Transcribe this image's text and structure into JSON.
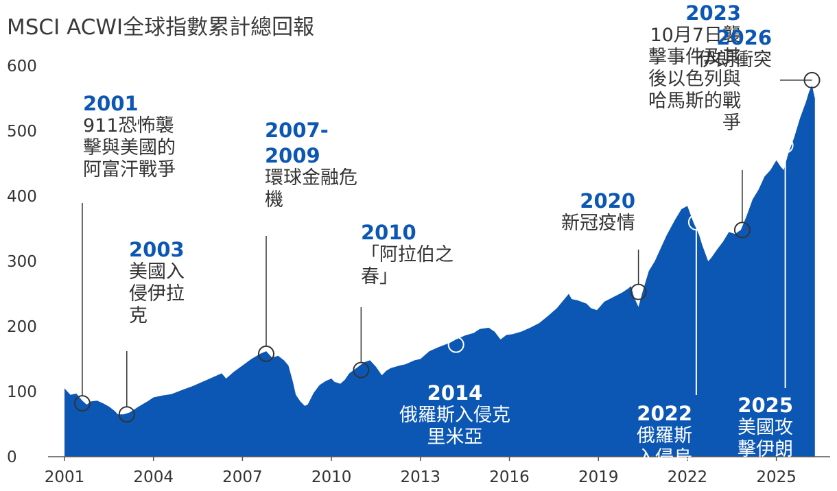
{
  "chart_data": {
    "type": "area",
    "title": "MSCI ACWI全球指數累計總回報",
    "xlabel": "",
    "ylabel": "",
    "xlim": [
      2001,
      2026.35
    ],
    "ylim": [
      0,
      600
    ],
    "y_ticks": [
      "0",
      "100",
      "200",
      "300",
      "400",
      "500",
      "600"
    ],
    "y_tick_values": [
      0,
      100,
      200,
      300,
      400,
      500,
      600
    ],
    "x_ticks": [
      "2001",
      "2004",
      "2007",
      "2010",
      "2013",
      "2016",
      "2019",
      "2022",
      "2025"
    ],
    "x_tick_values": [
      2001,
      2004,
      2007,
      2010,
      2013,
      2016,
      2019,
      2022,
      2025
    ],
    "fill_color": "#0c57b3",
    "grid": false,
    "series": [
      {
        "x": [
          2001.0,
          2001.2,
          2001.4,
          2001.6,
          2001.75,
          2001.9,
          2002.1,
          2002.3,
          2002.5,
          2002.7,
          2002.8,
          2003.0,
          2003.2,
          2003.5,
          2003.8,
          2004.0,
          2004.3,
          2004.6,
          2005.0,
          2005.3,
          2005.6,
          2006.0,
          2006.3,
          2006.45,
          2006.7,
          2007.0,
          2007.3,
          2007.6,
          2007.8,
          2008.0,
          2008.2,
          2008.4,
          2008.55,
          2008.7,
          2008.8,
          2008.95,
          2009.1,
          2009.2,
          2009.4,
          2009.6,
          2009.8,
          2010.0,
          2010.1,
          2010.3,
          2010.45,
          2010.6,
          2010.9,
          2011.1,
          2011.3,
          2011.5,
          2011.7,
          2011.85,
          2012.0,
          2012.3,
          2012.5,
          2012.8,
          2013.0,
          2013.3,
          2013.6,
          2014.0,
          2014.2,
          2014.5,
          2014.8,
          2015.0,
          2015.3,
          2015.5,
          2015.7,
          2015.9,
          2016.1,
          2016.4,
          2016.7,
          2017.0,
          2017.3,
          2017.6,
          2018.0,
          2018.1,
          2018.3,
          2018.6,
          2018.75,
          2018.95,
          2019.2,
          2019.5,
          2019.8,
          2020.0,
          2020.1,
          2020.2,
          2020.35,
          2020.5,
          2020.7,
          2020.9,
          2021.1,
          2021.3,
          2021.6,
          2021.8,
          2022.0,
          2022.2,
          2022.4,
          2022.5,
          2022.7,
          2022.8,
          2023.0,
          2023.2,
          2023.4,
          2023.6,
          2023.8,
          2024.0,
          2024.2,
          2024.4,
          2024.6,
          2024.8,
          2025.0,
          2025.15,
          2025.25,
          2025.4,
          2025.6,
          2025.8,
          2026.0,
          2026.1,
          2026.2,
          2026.3
        ],
        "values": [
          105,
          95,
          97,
          86,
          80,
          85,
          86,
          82,
          77,
          70,
          65,
          65,
          68,
          77,
          85,
          91,
          94,
          96,
          103,
          108,
          114,
          122,
          128,
          120,
          130,
          140,
          150,
          158,
          162,
          152,
          155,
          148,
          140,
          115,
          95,
          85,
          78,
          80,
          98,
          110,
          116,
          120,
          115,
          112,
          118,
          128,
          138,
          145,
          148,
          138,
          125,
          132,
          136,
          140,
          142,
          148,
          150,
          162,
          168,
          175,
          180,
          186,
          190,
          196,
          198,
          192,
          180,
          187,
          188,
          192,
          198,
          205,
          216,
          228,
          250,
          242,
          240,
          235,
          228,
          225,
          238,
          245,
          252,
          258,
          262,
          245,
          230,
          255,
          285,
          300,
          320,
          340,
          365,
          380,
          385,
          360,
          340,
          325,
          300,
          305,
          318,
          330,
          345,
          342,
          348,
          370,
          395,
          410,
          430,
          440,
          455,
          445,
          440,
          465,
          490,
          520,
          545,
          560,
          570,
          550
        ]
      }
    ],
    "annotations": [
      {
        "year": "2001",
        "lines": [
          "911恐怖襲",
          "擊與美國的",
          "阿富汗戰爭"
        ],
        "x": 2001.6,
        "y": 82
      },
      {
        "year": "2003",
        "lines": [
          "美國入",
          "侵伊拉",
          "克"
        ],
        "x": 2003.1,
        "y": 65
      },
      {
        "year": "2007-\n2009",
        "lines": [
          "環球金融危",
          "機"
        ],
        "x": 2007.8,
        "y": 158
      },
      {
        "year": "2010",
        "lines": [
          "「阿拉伯之",
          "春」"
        ],
        "x": 2011.0,
        "y": 133
      },
      {
        "year": "2014",
        "lines": [
          "俄羅斯入侵克",
          "里米亞"
        ],
        "x": 2014.2,
        "y": 172
      },
      {
        "year": "2020",
        "lines": [
          "新冠疫情"
        ],
        "x": 2020.35,
        "y": 253
      },
      {
        "year": "2022",
        "lines": [
          "俄羅斯",
          "入侵烏"
        ],
        "x": 2022.3,
        "y": 360
      },
      {
        "year": "2023",
        "lines": [
          "10月7日襲",
          "擊事件及其",
          "後以色列與",
          "哈馬斯的戰",
          "爭"
        ],
        "x": 2023.85,
        "y": 348
      },
      {
        "year": "2025",
        "lines": [
          "美國攻",
          "擊伊朗"
        ],
        "x": 2025.3,
        "y": 478
      },
      {
        "year": "2026",
        "lines": [
          "伊朗衝突"
        ],
        "x": 2026.2,
        "y": 578
      }
    ]
  }
}
